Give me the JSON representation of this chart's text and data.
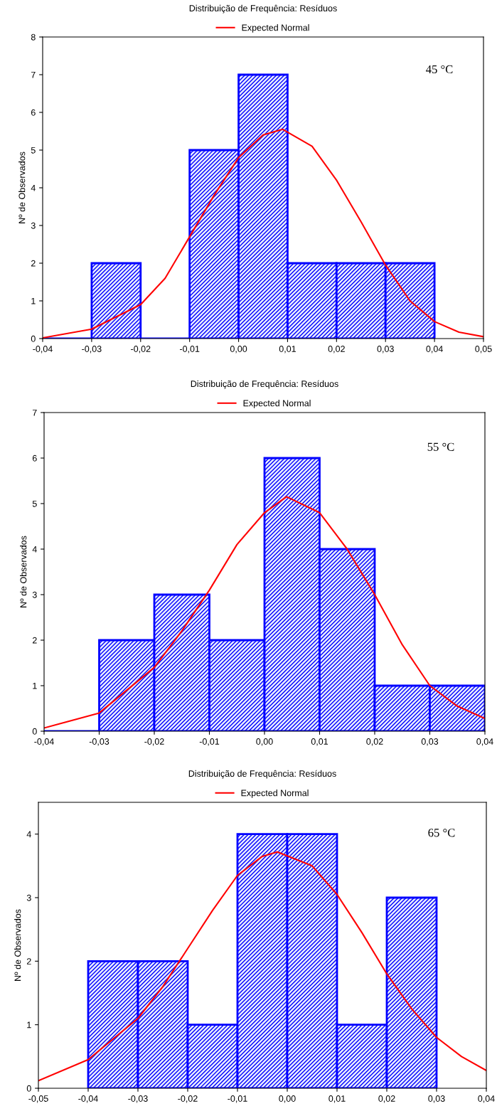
{
  "chart_data": [
    {
      "type": "histogram",
      "title": "Distribuição de Frequência: Resíduos",
      "ylabel": "Nº de Observados",
      "annotations": [
        "45 °C"
      ],
      "legend": "top",
      "grid": false,
      "color": "#0000ff",
      "bins": [
        -0.04,
        -0.03,
        -0.02,
        -0.01,
        0.0,
        0.01,
        0.02,
        0.03,
        0.04
      ],
      "values": [
        0,
        2,
        0,
        5,
        7,
        2,
        2,
        2
      ],
      "series": [
        {
          "name": "Expected Normal",
          "type": "line",
          "color": "#ff0000",
          "x": [
            -0.04,
            -0.03,
            -0.02,
            -0.015,
            -0.01,
            -0.005,
            0.0,
            0.005,
            0.009,
            0.015,
            0.02,
            0.025,
            0.03,
            0.035,
            0.04,
            0.045,
            0.05
          ],
          "values": [
            0.02,
            0.25,
            0.9,
            1.6,
            2.7,
            3.8,
            4.8,
            5.4,
            5.55,
            5.1,
            4.2,
            3.1,
            1.95,
            1.0,
            0.45,
            0.17,
            0.05
          ]
        }
      ],
      "xlim": [
        -0.04,
        0.05
      ],
      "xticks": [
        {
          "value": -0.04,
          "label": "-0,04"
        },
        {
          "value": -0.03,
          "label": "-0,03"
        },
        {
          "value": -0.02,
          "label": "-0,02"
        },
        {
          "value": -0.01,
          "label": "-0,01"
        },
        {
          "value": 0.0,
          "label": "0,00"
        },
        {
          "value": 0.01,
          "label": "0,01"
        },
        {
          "value": 0.02,
          "label": "0,02"
        },
        {
          "value": 0.03,
          "label": "0,03"
        },
        {
          "value": 0.04,
          "label": "0,04"
        },
        {
          "value": 0.05,
          "label": "0,05"
        }
      ],
      "ylim": [
        0,
        8
      ],
      "yticks": [
        0,
        1,
        2,
        3,
        4,
        5,
        6,
        7,
        8
      ]
    },
    {
      "type": "histogram",
      "title": "Distribuição de Frequência: Resíduos",
      "ylabel": "Nº de Observados",
      "annotations": [
        "55 °C"
      ],
      "legend": "top",
      "grid": false,
      "color": "#0000ff",
      "bins": [
        -0.04,
        -0.03,
        -0.02,
        -0.01,
        0.0,
        0.01,
        0.02,
        0.03,
        0.04
      ],
      "values": [
        0,
        2,
        3,
        2,
        6,
        4,
        1,
        1
      ],
      "series": [
        {
          "name": "Expected Normal",
          "type": "line",
          "color": "#ff0000",
          "x": [
            -0.04,
            -0.03,
            -0.02,
            -0.015,
            -0.01,
            -0.005,
            0.0,
            0.004,
            0.01,
            0.015,
            0.02,
            0.025,
            0.03,
            0.035,
            0.04
          ],
          "values": [
            0.07,
            0.4,
            1.4,
            2.2,
            3.1,
            4.1,
            4.8,
            5.15,
            4.8,
            4.0,
            3.0,
            1.9,
            1.0,
            0.55,
            0.28
          ]
        }
      ],
      "xlim": [
        -0.04,
        0.04
      ],
      "xticks": [
        {
          "value": -0.04,
          "label": "-0,04"
        },
        {
          "value": -0.03,
          "label": "-0,03"
        },
        {
          "value": -0.02,
          "label": "-0,02"
        },
        {
          "value": -0.01,
          "label": "-0,01"
        },
        {
          "value": 0.0,
          "label": "0,00"
        },
        {
          "value": 0.01,
          "label": "0,01"
        },
        {
          "value": 0.02,
          "label": "0,02"
        },
        {
          "value": 0.03,
          "label": "0,03"
        },
        {
          "value": 0.04,
          "label": "0,04"
        }
      ],
      "ylim": [
        0,
        7
      ],
      "yticks": [
        0,
        1,
        2,
        3,
        4,
        5,
        6,
        7
      ]
    },
    {
      "type": "histogram",
      "title": "Distribuição de Frequência: Resíduos",
      "ylabel": "Nº de Observados",
      "annotations": [
        "65 °C"
      ],
      "legend": "top",
      "grid": false,
      "color": "#0000ff",
      "bins": [
        -0.04,
        -0.03,
        -0.02,
        -0.01,
        0.0,
        0.01,
        0.02,
        0.03
      ],
      "values": [
        2,
        2,
        1,
        4,
        4,
        1,
        3
      ],
      "series": [
        {
          "name": "Expected Normal",
          "type": "line",
          "color": "#ff0000",
          "x": [
            -0.05,
            -0.04,
            -0.03,
            -0.025,
            -0.02,
            -0.015,
            -0.01,
            -0.005,
            -0.002,
            0.005,
            0.01,
            0.015,
            0.02,
            0.025,
            0.03,
            0.035,
            0.04
          ],
          "values": [
            0.12,
            0.45,
            1.1,
            1.6,
            2.2,
            2.8,
            3.35,
            3.65,
            3.72,
            3.5,
            3.05,
            2.45,
            1.8,
            1.25,
            0.8,
            0.5,
            0.28
          ]
        }
      ],
      "xlim": [
        -0.05,
        0.04
      ],
      "xticks": [
        {
          "value": -0.05,
          "label": "-0,05"
        },
        {
          "value": -0.04,
          "label": "-0,04"
        },
        {
          "value": -0.03,
          "label": "-0,03"
        },
        {
          "value": -0.02,
          "label": "-0,02"
        },
        {
          "value": -0.01,
          "label": "-0,01"
        },
        {
          "value": 0.0,
          "label": "0,00"
        },
        {
          "value": 0.01,
          "label": "0,01"
        },
        {
          "value": 0.02,
          "label": "0,02"
        },
        {
          "value": 0.03,
          "label": "0,03"
        },
        {
          "value": 0.04,
          "label": "0,04"
        }
      ],
      "ylim": [
        0,
        4.5
      ],
      "yticks": [
        0,
        1,
        2,
        3,
        4
      ]
    }
  ]
}
